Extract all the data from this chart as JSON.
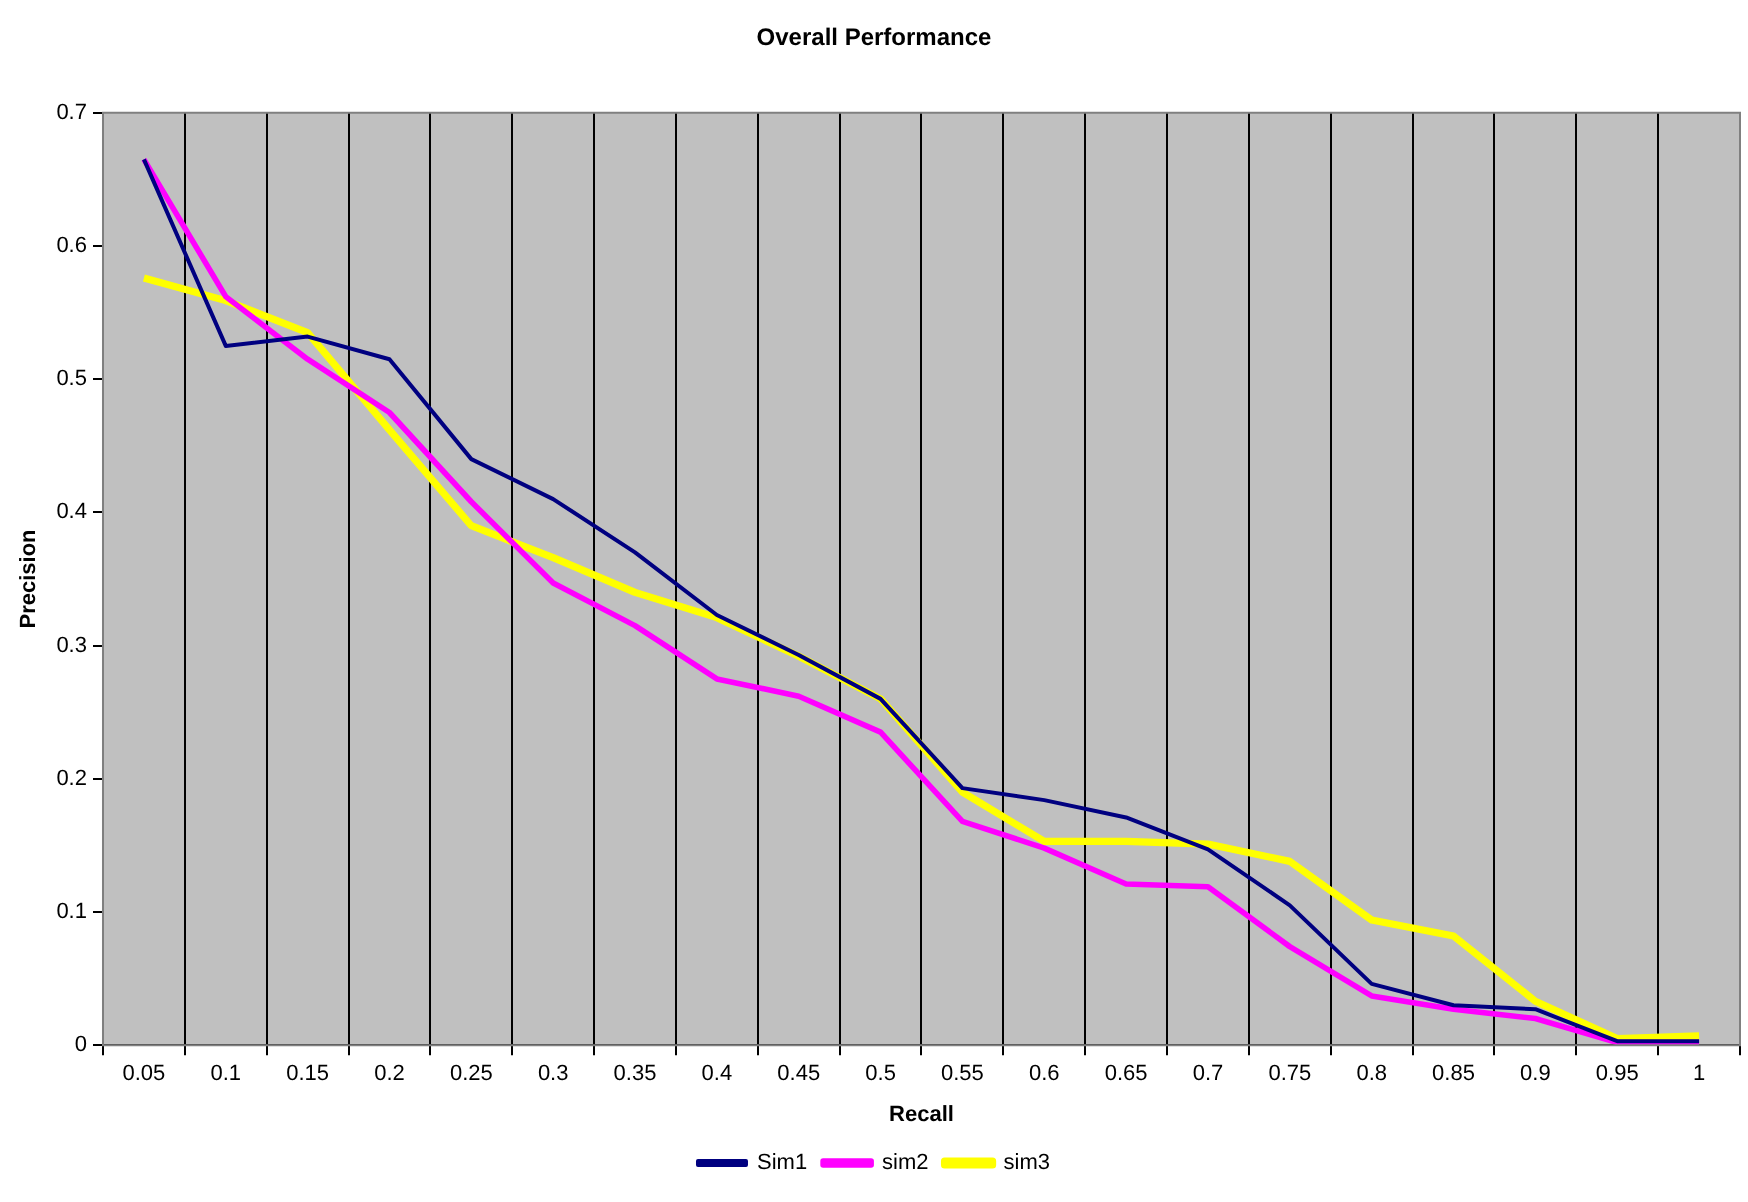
{
  "chart_data": {
    "type": "line",
    "title": "Overall Performance",
    "xlabel": "Recall",
    "ylabel": "Precision",
    "categories": [
      "0.05",
      "0.1",
      "0.15",
      "0.2",
      "0.25",
      "0.3",
      "0.35",
      "0.4",
      "0.45",
      "0.5",
      "0.55",
      "0.6",
      "0.65",
      "0.7",
      "0.75",
      "0.8",
      "0.85",
      "0.9",
      "0.95",
      "1"
    ],
    "series": [
      {
        "name": "Sim1",
        "color": "#000080",
        "values": [
          0.665,
          0.525,
          0.532,
          0.515,
          0.44,
          0.41,
          0.37,
          0.323,
          0.293,
          0.26,
          0.193,
          0.184,
          0.171,
          0.147,
          0.105,
          0.046,
          0.03,
          0.027,
          0.003,
          0.003
        ]
      },
      {
        "name": "sim2",
        "color": "#ff00ff",
        "values": [
          0.665,
          0.562,
          0.515,
          0.475,
          0.408,
          0.347,
          0.315,
          0.275,
          0.262,
          0.235,
          0.168,
          0.148,
          0.121,
          0.119,
          0.074,
          0.037,
          0.027,
          0.02,
          0.002,
          0.002
        ]
      },
      {
        "name": "sim3",
        "color": "#ffff00",
        "values": [
          0.576,
          0.559,
          0.535,
          0.462,
          0.39,
          0.366,
          0.34,
          0.321,
          0.292,
          0.26,
          0.19,
          0.153,
          0.153,
          0.151,
          0.138,
          0.094,
          0.082,
          0.033,
          0.005,
          0.007
        ]
      }
    ],
    "ylim": [
      0,
      0.7
    ],
    "yticks": [
      0,
      0.1,
      0.2,
      0.3,
      0.4,
      0.5,
      0.6,
      0.7
    ],
    "grid": "x",
    "legend": "bottom",
    "marker": "none",
    "line_style": "solid"
  }
}
